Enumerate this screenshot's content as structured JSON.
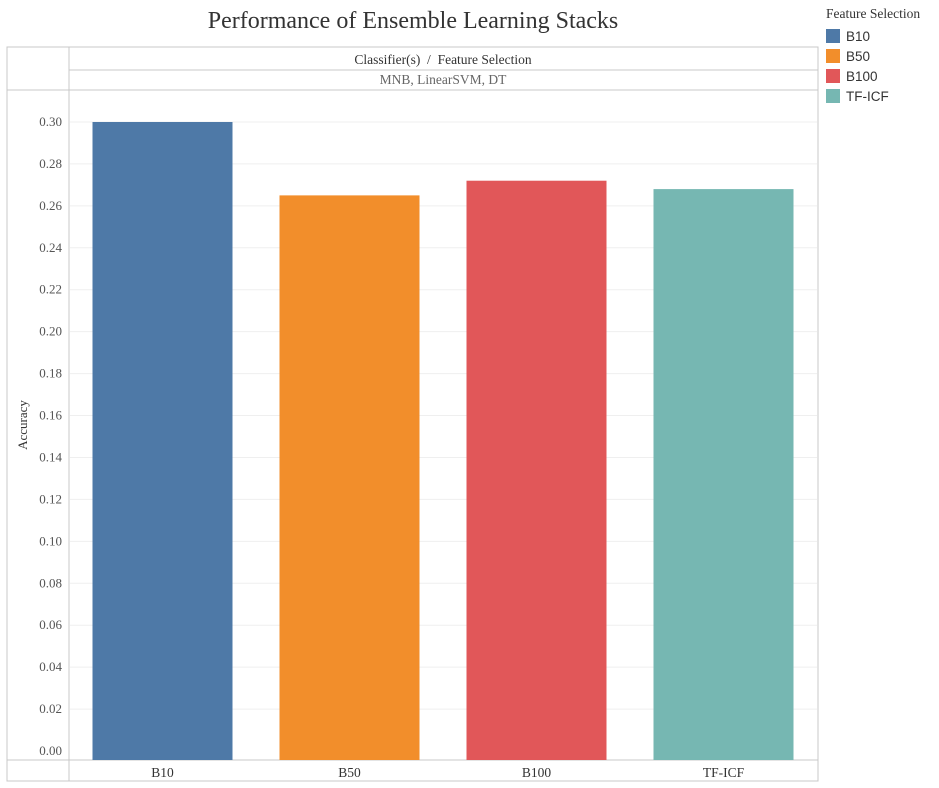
{
  "chart_data": {
    "type": "bar",
    "title": "Performance of Ensemble Learning Stacks",
    "header_label": "Classifier(s)  /  Feature Selection",
    "panel_label": "MNB, LinearSVM, DT",
    "ylabel": "Accuracy",
    "xlabel": "",
    "categories": [
      "B10",
      "B50",
      "B100",
      "TF-ICF"
    ],
    "values": [
      0.3,
      0.265,
      0.272,
      0.268
    ],
    "colors": [
      "#4e79a7",
      "#f28e2b",
      "#e15759",
      "#76b7b2"
    ],
    "ylim": [
      0,
      0.3
    ],
    "yticks": [
      "0.00",
      "0.02",
      "0.04",
      "0.06",
      "0.08",
      "0.10",
      "0.12",
      "0.14",
      "0.16",
      "0.18",
      "0.20",
      "0.22",
      "0.24",
      "0.26",
      "0.28",
      "0.30"
    ],
    "grid": true,
    "legend": {
      "title": "Feature Selection",
      "position": "top-right",
      "entries": [
        "B10",
        "B50",
        "B100",
        "TF-ICF"
      ]
    }
  }
}
